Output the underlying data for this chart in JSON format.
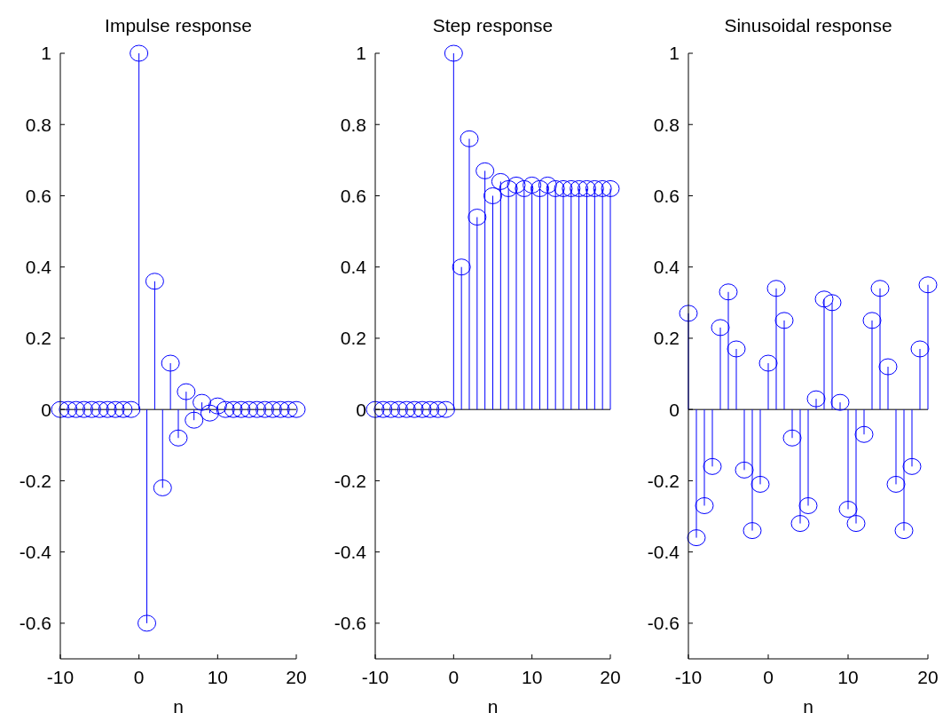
{
  "chart_data": [
    {
      "type": "lollipop",
      "title": "Impulse response",
      "xlabel": "n",
      "color": "#0000ff",
      "marker": "circle",
      "x": [
        -10,
        -9,
        -8,
        -7,
        -6,
        -5,
        -4,
        -3,
        -2,
        -1,
        0,
        1,
        2,
        3,
        4,
        5,
        6,
        7,
        8,
        9,
        10,
        11,
        12,
        13,
        14,
        15,
        16,
        17,
        18,
        19,
        20
      ],
      "values": [
        0,
        0,
        0,
        0,
        0,
        0,
        0,
        0,
        0,
        0,
        1,
        -0.6,
        0.36,
        -0.22,
        0.13,
        -0.08,
        0.05,
        -0.03,
        0.02,
        -0.01,
        0.01,
        0,
        0,
        0,
        0,
        0,
        0,
        0,
        0,
        0,
        0
      ],
      "xlim": [
        -10,
        20
      ],
      "xticks": [
        -10,
        0,
        10,
        20
      ],
      "ylim": [
        -0.7,
        1
      ],
      "yticks": [
        -0.6,
        -0.4,
        -0.2,
        0,
        0.2,
        0.4,
        0.6,
        0.8,
        1
      ]
    },
    {
      "type": "lollipop",
      "title": "Step response",
      "xlabel": "n",
      "color": "#0000ff",
      "marker": "circle",
      "x": [
        -10,
        -9,
        -8,
        -7,
        -6,
        -5,
        -4,
        -3,
        -2,
        -1,
        0,
        1,
        2,
        3,
        4,
        5,
        6,
        7,
        8,
        9,
        10,
        11,
        12,
        13,
        14,
        15,
        16,
        17,
        18,
        19,
        20
      ],
      "values": [
        0,
        0,
        0,
        0,
        0,
        0,
        0,
        0,
        0,
        0,
        1,
        0.4,
        0.76,
        0.54,
        0.67,
        0.6,
        0.64,
        0.62,
        0.63,
        0.62,
        0.63,
        0.62,
        0.63,
        0.62,
        0.62,
        0.62,
        0.62,
        0.62,
        0.62,
        0.62,
        0.62
      ],
      "xlim": [
        -10,
        20
      ],
      "xticks": [
        -10,
        0,
        10,
        20
      ],
      "ylim": [
        -0.7,
        1
      ],
      "yticks": [
        -0.6,
        -0.4,
        -0.2,
        0,
        0.2,
        0.4,
        0.6,
        0.8,
        1
      ]
    },
    {
      "type": "lollipop",
      "title": "Sinusoidal response",
      "xlabel": "n",
      "color": "#0000ff",
      "marker": "circle",
      "x": [
        -10,
        -9,
        -8,
        -7,
        -6,
        -5,
        -4,
        -3,
        -2,
        -1,
        0,
        1,
        2,
        3,
        4,
        5,
        6,
        7,
        8,
        9,
        10,
        11,
        12,
        13,
        14,
        15,
        16,
        17,
        18,
        19,
        20
      ],
      "values": [
        0.27,
        -0.36,
        -0.27,
        -0.16,
        0.23,
        0.33,
        0.17,
        -0.17,
        -0.34,
        -0.21,
        0.13,
        0.34,
        0.25,
        -0.08,
        -0.32,
        -0.27,
        0.03,
        0.31,
        0.3,
        0.02,
        -0.28,
        -0.32,
        -0.07,
        0.25,
        0.34,
        0.12,
        -0.21,
        -0.34,
        -0.16,
        0.17,
        0.35
      ],
      "xlim": [
        -10,
        20
      ],
      "xticks": [
        -10,
        0,
        10,
        20
      ],
      "ylim": [
        -0.7,
        1
      ],
      "yticks": [
        -0.6,
        -0.4,
        -0.2,
        0,
        0.2,
        0.4,
        0.6,
        0.8,
        1
      ]
    }
  ]
}
